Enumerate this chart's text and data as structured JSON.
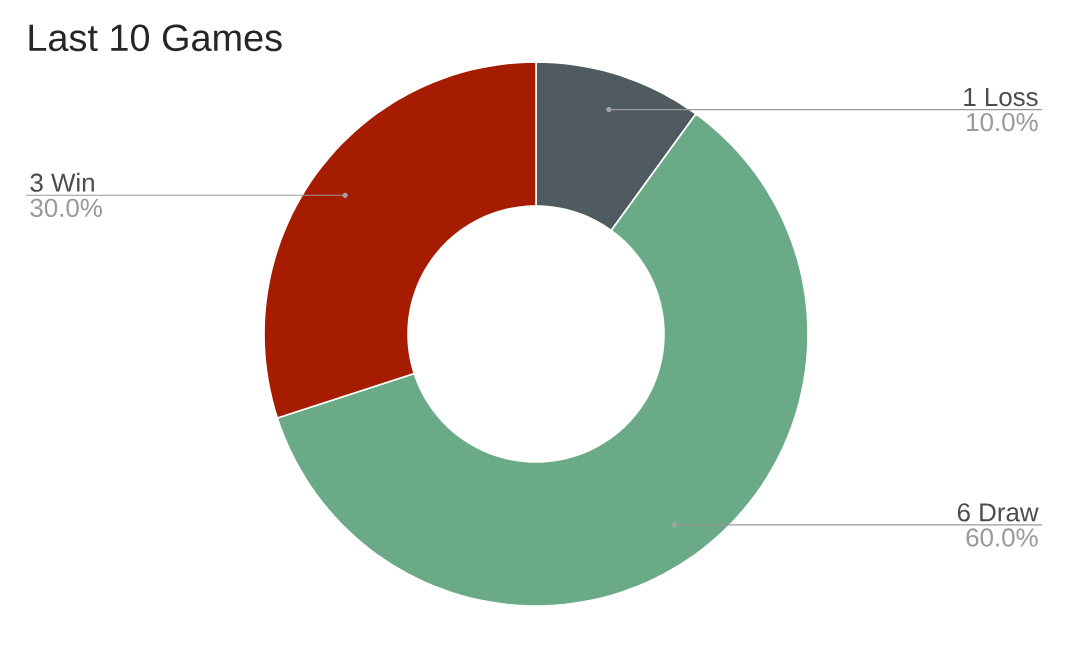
{
  "chart_data": {
    "type": "donut",
    "title": "Last 10 Games",
    "categories": [
      "1 Loss",
      "6 Draw",
      "3 Win"
    ],
    "values": [
      10,
      60,
      30
    ],
    "value_labels": [
      "10.0%",
      "60.0%",
      "30.0%"
    ],
    "colors": [
      "#4f5a61",
      "#6aaa87",
      "#a61c00"
    ]
  }
}
